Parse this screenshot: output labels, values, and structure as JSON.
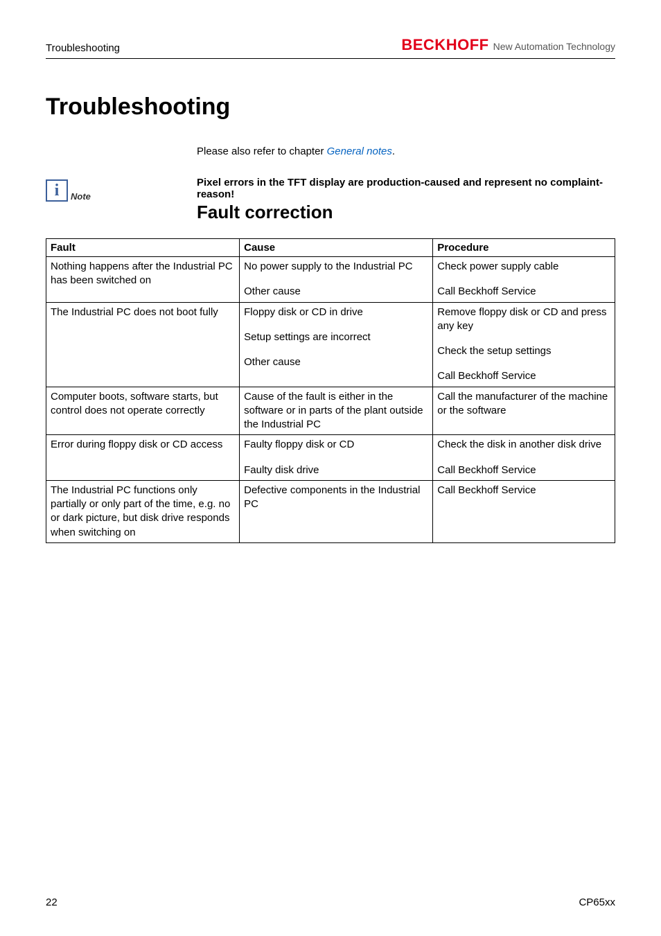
{
  "header": {
    "section": "Troubleshooting",
    "logo_main": "BECKHOFF",
    "logo_sub": "New Automation Technology"
  },
  "title": "Troubleshooting",
  "intro_prefix": "Please also refer to chapter ",
  "intro_link": "General notes",
  "intro_suffix": ".",
  "note": {
    "icon_label": "Note",
    "text": "Pixel errors in the TFT display are production-caused and represent no complaint-reason!"
  },
  "subtitle": "Fault correction",
  "table": {
    "headers": [
      "Fault",
      "Cause",
      "Procedure"
    ],
    "rows": [
      {
        "fault": "Nothing happens after the Industrial PC has been switched on",
        "pairs": [
          {
            "cause": "No power supply to the Industrial PC",
            "proc": "Check power supply cable"
          },
          {
            "cause": "Other cause",
            "proc": "Call Beckhoff Service"
          }
        ]
      },
      {
        "fault": "The Industrial PC does not boot fully",
        "pairs": [
          {
            "cause": "Floppy disk or CD in drive",
            "proc": "Remove floppy disk or CD and press any key"
          },
          {
            "cause": "Setup settings are incorrect",
            "proc": "Check the setup settings"
          },
          {
            "cause": "Other cause",
            "proc": "Call Beckhoff Service"
          }
        ]
      },
      {
        "fault": "Computer boots, software starts, but control does not operate correctly",
        "pairs": [
          {
            "cause": "Cause of the fault is either in the software or in parts of the plant outside the Industrial PC",
            "proc": "Call the manufacturer of the machine or the software"
          }
        ]
      },
      {
        "fault": "Error during floppy disk or CD access",
        "pairs": [
          {
            "cause": "Faulty floppy disk or CD",
            "proc": "Check the disk in another disk drive"
          },
          {
            "cause": "Faulty disk drive",
            "proc": "Call Beckhoff Service"
          }
        ]
      },
      {
        "fault": "The Industrial PC functions only partially or only part of the time, e.g. no or dark picture, but disk drive responds when switching on",
        "pairs": [
          {
            "cause": "Defective components in the Industrial PC",
            "proc": "Call Beckhoff Service"
          }
        ]
      }
    ]
  },
  "footer": {
    "page": "22",
    "doc": "CP65xx"
  },
  "colors": {
    "logo_red": "#e2001a",
    "link_blue": "#0563c1",
    "note_border": "#3b5f9a"
  }
}
